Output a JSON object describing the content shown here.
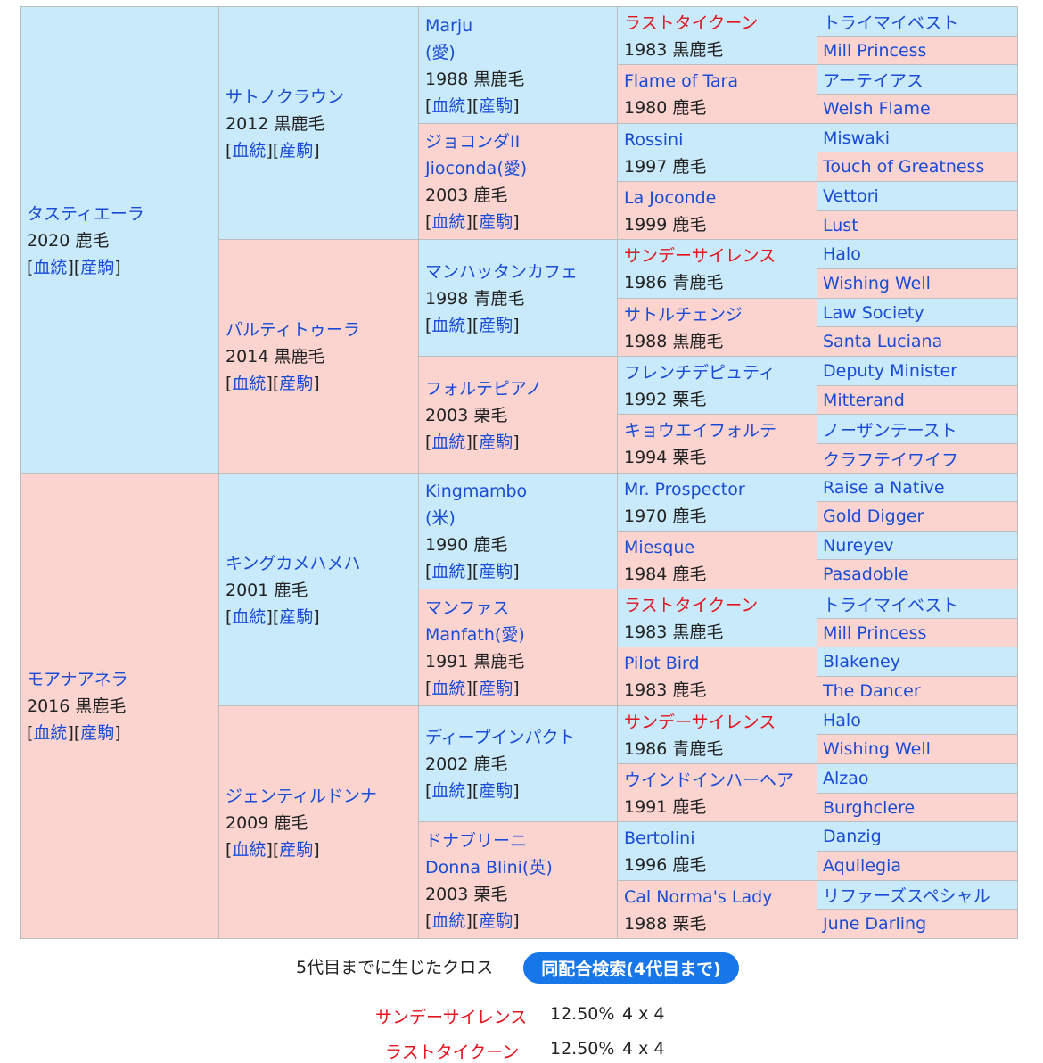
{
  "pedigree": {
    "gen1": [
      {
        "name": "タスティエーラ",
        "info": "2020 鹿毛",
        "links": [
          "血統",
          "産駒"
        ],
        "sex": "m"
      },
      {
        "name": "モアナアネラ",
        "info": "2016 黒鹿毛",
        "links": [
          "血統",
          "産駒"
        ],
        "sex": "f"
      }
    ],
    "gen2": [
      {
        "name": "サトノクラウン",
        "info": "2012 黒鹿毛",
        "links": [
          "血統",
          "産駒"
        ],
        "sex": "m"
      },
      {
        "name": "パルティトゥーラ",
        "info": "2014 黒鹿毛",
        "links": [
          "血統",
          "産駒"
        ],
        "sex": "f"
      },
      {
        "name": "キングカメハメハ",
        "info": "2001 鹿毛",
        "links": [
          "血統",
          "産駒"
        ],
        "sex": "m"
      },
      {
        "name": "ジェンティルドンナ",
        "info": "2009 鹿毛",
        "links": [
          "血統",
          "産駒"
        ],
        "sex": "f"
      }
    ],
    "gen3": [
      {
        "name": "Marju",
        "name2": "(愛)",
        "info": "1988 黒鹿毛",
        "links": [
          "血統",
          "産駒"
        ],
        "sex": "m"
      },
      {
        "name": "ジョコンダII",
        "name2": "Jioconda(愛)",
        "info": "2003 鹿毛",
        "links": [
          "血統",
          "産駒"
        ],
        "sex": "f"
      },
      {
        "name": "マンハッタンカフェ",
        "info": "1998 青鹿毛",
        "links": [
          "血統",
          "産駒"
        ],
        "sex": "m"
      },
      {
        "name": "フォルテピアノ",
        "info": "2003 栗毛",
        "links": [
          "血統",
          "産駒"
        ],
        "sex": "f"
      },
      {
        "name": "Kingmambo",
        "name2": "(米)",
        "info": "1990 鹿毛",
        "links": [
          "血統",
          "産駒"
        ],
        "sex": "m"
      },
      {
        "name": "マンファス",
        "name2": "Manfath(愛)",
        "info": "1991 黒鹿毛",
        "links": [
          "血統",
          "産駒"
        ],
        "sex": "f"
      },
      {
        "name": "ディープインパクト",
        "info": "2002 鹿毛",
        "links": [
          "血統",
          "産駒"
        ],
        "sex": "m"
      },
      {
        "name": "ドナブリーニ",
        "name2": "Donna Blini(英)",
        "info": "2003 栗毛",
        "links": [
          "血統",
          "産駒"
        ],
        "sex": "f"
      }
    ],
    "gen4": [
      {
        "name": "ラストタイクーン",
        "info": "1983 黒鹿毛",
        "sex": "m",
        "red": true
      },
      {
        "name": "Flame of Tara",
        "info": "1980 鹿毛",
        "sex": "f"
      },
      {
        "name": "Rossini",
        "info": "1997 鹿毛",
        "sex": "m"
      },
      {
        "name": "La Joconde",
        "info": "1999 鹿毛",
        "sex": "f"
      },
      {
        "name": "サンデーサイレンス",
        "info": "1986 青鹿毛",
        "sex": "m",
        "red": true
      },
      {
        "name": "サトルチェンジ",
        "info": "1988 黒鹿毛",
        "sex": "f"
      },
      {
        "name": "フレンチデピュティ",
        "info": "1992 栗毛",
        "sex": "m"
      },
      {
        "name": "キョウエイフォルテ",
        "info": "1994 栗毛",
        "sex": "f"
      },
      {
        "name": "Mr. Prospector",
        "info": "1970 鹿毛",
        "sex": "m"
      },
      {
        "name": "Miesque",
        "info": "1984 鹿毛",
        "sex": "f"
      },
      {
        "name": "ラストタイクーン",
        "info": "1983 黒鹿毛",
        "sex": "m",
        "red": true
      },
      {
        "name": "Pilot Bird",
        "info": "1983 鹿毛",
        "sex": "f"
      },
      {
        "name": "サンデーサイレンス",
        "info": "1986 青鹿毛",
        "sex": "m",
        "red": true
      },
      {
        "name": "ウインドインハーヘア",
        "info": "1991 鹿毛",
        "sex": "f"
      },
      {
        "name": "Bertolini",
        "info": "1996 鹿毛",
        "sex": "m"
      },
      {
        "name": "Cal Norma's Lady",
        "info": "1988 栗毛",
        "sex": "f"
      }
    ],
    "gen5": [
      "トライマイベスト",
      "Mill Princess",
      "アーテイアス",
      "Welsh Flame",
      "Miswaki",
      "Touch of Greatness",
      "Vettori",
      "Lust",
      "Halo",
      "Wishing Well",
      "Law Society",
      "Santa Luciana",
      "Deputy Minister",
      "Mitterand",
      "ノーザンテースト",
      "クラフテイワイフ",
      "Raise a Native",
      "Gold Digger",
      "Nureyev",
      "Pasadoble",
      "トライマイベスト",
      "Mill Princess",
      "Blakeney",
      "The Dancer",
      "Halo",
      "Wishing Well",
      "Alzao",
      "Burghclere",
      "Danzig",
      "Aquilegia",
      "リファーズスペシャル",
      "June Darling"
    ]
  },
  "crosses": {
    "title": "5代目までに生じたクロス",
    "search_button": "同配合検索(4代目まで)",
    "items": [
      {
        "name": "サンデーサイレンス",
        "pct": "12.50%",
        "gen": "4 x 4"
      },
      {
        "name": "ラストタイクーン",
        "pct": "12.50%",
        "gen": "4 x 4"
      }
    ]
  },
  "colors": {
    "male_bg": "#c8eafa",
    "female_bg": "#fbd4d0",
    "link": "#1a4bd6",
    "highlight": "#e3141e",
    "button": "#1776e8"
  }
}
